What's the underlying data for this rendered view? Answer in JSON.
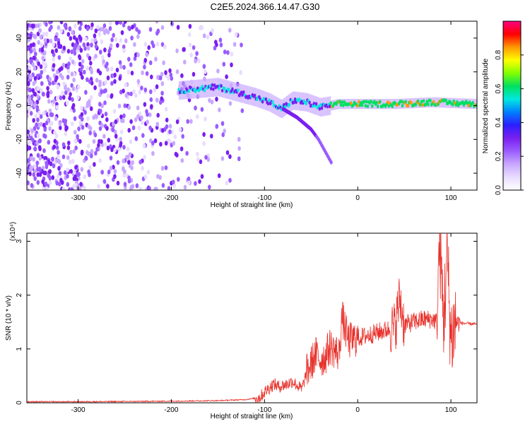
{
  "title": "C2E5.2024.366.14.47.G30",
  "colors": {
    "snr_line": "#e8302a",
    "axes": "#000000",
    "colormap": [
      "#ffffff",
      "#e9dcff",
      "#c8a8ff",
      "#9a5cff",
      "#7a1ff0",
      "#2a1fff",
      "#0080ff",
      "#00e8e0",
      "#00e060",
      "#80ff00",
      "#ffff00",
      "#ff9900",
      "#ff0000",
      "#ff0080"
    ]
  },
  "chart_data": [
    {
      "type": "heatmap",
      "xlabel": "Height of straight line (km)",
      "ylabel": "Frequency (Hz)",
      "xlim": [
        -355,
        128
      ],
      "ylim": [
        -50,
        50
      ],
      "xticks": [
        -300,
        -200,
        -100,
        0,
        100
      ],
      "yticks": [
        -40,
        -20,
        0,
        20,
        40
      ],
      "ridge": [
        {
          "x": -192,
          "f": 9
        },
        {
          "x": -170,
          "f": 10
        },
        {
          "x": -150,
          "f": 11
        },
        {
          "x": -130,
          "f": 8
        },
        {
          "x": -110,
          "f": 5
        },
        {
          "x": -95,
          "f": 2
        },
        {
          "x": -82,
          "f": -2
        },
        {
          "x": -70,
          "f": 3
        },
        {
          "x": -55,
          "f": 2
        },
        {
          "x": -40,
          "f": -1
        },
        {
          "x": -20,
          "f": 1
        },
        {
          "x": 0,
          "f": 1
        },
        {
          "x": 40,
          "f": 1
        },
        {
          "x": 80,
          "f": 2
        },
        {
          "x": 128,
          "f": 1
        }
      ],
      "branch": [
        {
          "x": -80,
          "f": -2
        },
        {
          "x": -65,
          "f": -7
        },
        {
          "x": -50,
          "f": -14
        },
        {
          "x": -42,
          "f": -20
        },
        {
          "x": -28,
          "f": -34
        }
      ]
    },
    {
      "type": "colorbar",
      "label": "Normalized spectral amplitude",
      "range": [
        0,
        1
      ],
      "ticks": [
        "0.0",
        "0.2",
        "0.4",
        "0.6",
        "0.8"
      ],
      "tick_values": [
        0.0,
        0.2,
        0.4,
        0.6,
        0.8
      ]
    },
    {
      "type": "line",
      "xlabel": "Height of straight line (km)",
      "ylabel": "SNR (10 * v/v)",
      "y_multiplier": "(x10⁴)",
      "xlim": [
        -355,
        128
      ],
      "ylim": [
        0,
        3.15
      ],
      "xticks": [
        -300,
        -200,
        -100,
        0,
        100
      ],
      "yticks": [
        0,
        1,
        2,
        3
      ],
      "series": [
        {
          "x": [
            -355,
            -300,
            -200,
            -150,
            -120,
            -105,
            -100,
            -90,
            -85,
            -75,
            -70,
            -60,
            -55,
            -45,
            -40,
            -35,
            -30,
            -20,
            -17,
            -10,
            0,
            10,
            20,
            30,
            40,
            45,
            50,
            60,
            70,
            80,
            85,
            88,
            92,
            96,
            100,
            105,
            110,
            128
          ],
          "y": [
            0.02,
            0.02,
            0.03,
            0.04,
            0.06,
            0.1,
            0.2,
            0.35,
            0.3,
            0.35,
            0.4,
            0.25,
            0.55,
            0.9,
            0.8,
            0.85,
            1.05,
            0.9,
            1.6,
            1.15,
            1.2,
            1.25,
            1.3,
            1.35,
            1.4,
            1.95,
            1.45,
            1.5,
            1.55,
            1.55,
            1.5,
            3.1,
            1.5,
            2.7,
            1.2,
            1.5,
            1.48,
            1.46
          ]
        }
      ]
    }
  ]
}
